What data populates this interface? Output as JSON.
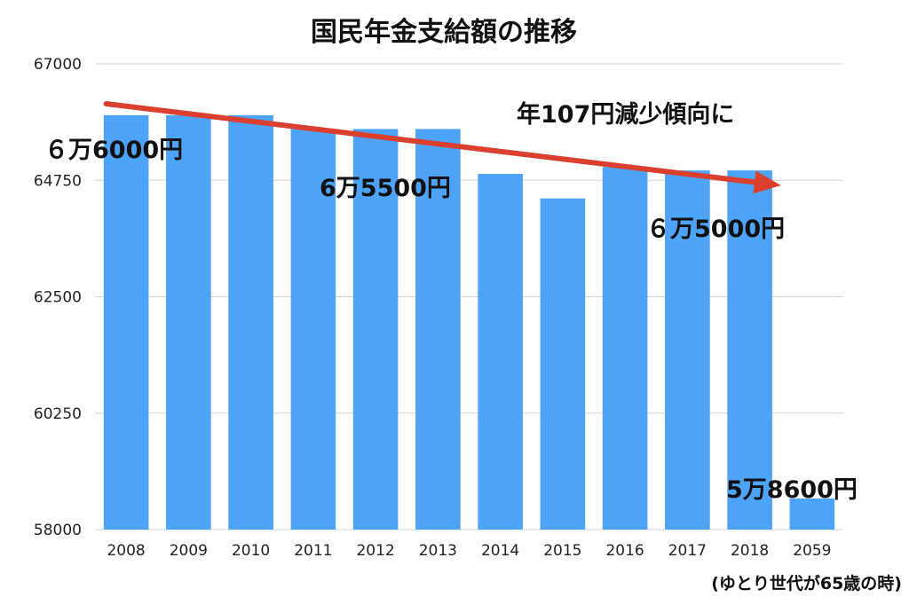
{
  "chart_data": {
    "type": "bar",
    "title": "国民年金支給額の推移",
    "xlabel": "",
    "ylabel": "",
    "categories": [
      "2008",
      "2009",
      "2010",
      "2011",
      "2012",
      "2013",
      "2014",
      "2015",
      "2016",
      "2017",
      "2018",
      "2059"
    ],
    "values": [
      66008,
      66008,
      66008,
      65741,
      65741,
      65741,
      64875,
      64400,
      65008,
      64941,
      64941,
      58600
    ],
    "ylim": [
      58000,
      67000
    ],
    "yticks": [
      "58000",
      "60250",
      "62500",
      "64750",
      "67000"
    ],
    "grid": true,
    "legend": "none",
    "bar_color": "#4da3f8",
    "gridline_color": "#d4d4d4",
    "trend_arrow": {
      "color": "#db3f2e",
      "from_category": "2008",
      "to_category": "2018"
    },
    "annotations": {
      "trend": "年107円減少傾向に",
      "label_2008": "６万6000円",
      "label_2012": "6万5500円",
      "label_2017": "６万5000円",
      "label_2059": "5万8600円"
    },
    "footnote": "(ゆとり世代が65歳の時)"
  }
}
